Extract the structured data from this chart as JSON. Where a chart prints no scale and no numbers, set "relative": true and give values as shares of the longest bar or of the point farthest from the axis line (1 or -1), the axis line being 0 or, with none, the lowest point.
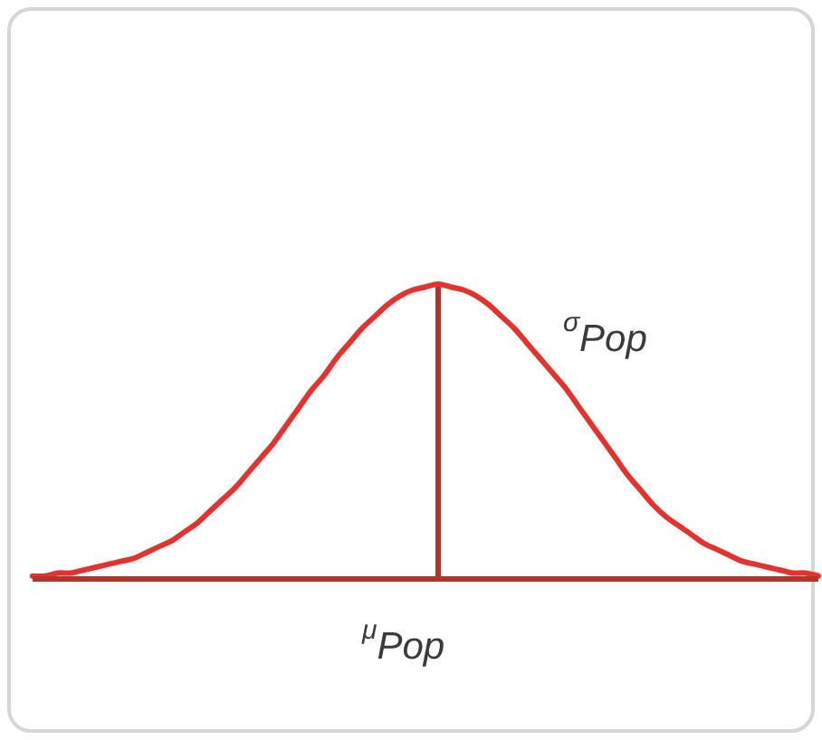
{
  "chart_data": {
    "type": "line",
    "relative": true,
    "categories": [
      null,
      null,
      null,
      null,
      null,
      null,
      null,
      null,
      null,
      null,
      null,
      null,
      null,
      null,
      null,
      null,
      null,
      null,
      null,
      null,
      null,
      null,
      null,
      null,
      null,
      null,
      null,
      null,
      null,
      null,
      null,
      null,
      null,
      null,
      null,
      null,
      null,
      null,
      null,
      null,
      null,
      null,
      null,
      null,
      null,
      null,
      null,
      null,
      null,
      null,
      null,
      null,
      null,
      null,
      null,
      null,
      null,
      null,
      null,
      null,
      null,
      null,
      null
    ],
    "series": [
      {
        "color": "#e2332f",
        "values": [
          0.01,
          0.01,
          0.02,
          0.02,
          0.03,
          0.04,
          0.05,
          0.06,
          0.07,
          0.09,
          0.11,
          0.13,
          0.16,
          0.19,
          0.23,
          0.27,
          0.31,
          0.36,
          0.41,
          0.46,
          0.52,
          0.58,
          0.64,
          0.69,
          0.75,
          0.8,
          0.85,
          0.89,
          0.93,
          0.96,
          0.98,
          0.99,
          1,
          0.99,
          0.98,
          0.96,
          0.93,
          0.89,
          0.85,
          0.8,
          0.75,
          0.7,
          0.65,
          0.59,
          0.53,
          0.47,
          0.41,
          0.35,
          0.3,
          0.25,
          0.21,
          0.18,
          0.15,
          0.12,
          0.1,
          0.08,
          0.06,
          0.05,
          0.04,
          0.03,
          0.02,
          0.02,
          0.01
        ]
      }
    ],
    "annotations": [
      "σ$_{Pop}$",
      "μ$_{Pop}$"
    ]
  }
}
